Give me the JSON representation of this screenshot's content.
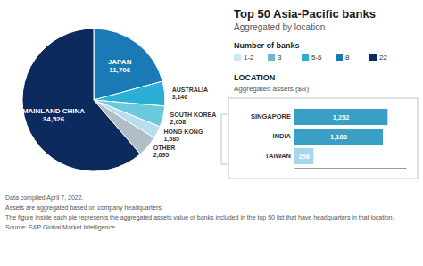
{
  "chart_data": [
    {
      "type": "pie",
      "title": "Top 50 Asia-Pacific banks",
      "subtitle": "Aggregated by location",
      "categories": [
        "JAPAN",
        "AUSTRALIA",
        "SOUTH KOREA",
        "HONG KONG",
        "OTHER",
        "MAINLAND CHINA"
      ],
      "values": [
        11706,
        3146,
        2658,
        1585,
        2695,
        34526
      ],
      "value_labels": [
        "11,706",
        "3,146",
        "2,658",
        "1,585",
        "2,695",
        "34,526"
      ],
      "colors": [
        "#1a7ab5",
        "#2bafd4",
        "#6cc8dc",
        "#b8dded",
        "#b0bec5",
        "#0c2a5e"
      ],
      "data_labels": true,
      "legend_title": "Number of banks",
      "legend_items": [
        "1-2",
        "3",
        "5-6",
        "8",
        "22"
      ],
      "legend_colors": [
        "#c9e8f4",
        "#6ab7d6",
        "#2bafd4",
        "#1a7ab5",
        "#0c2a5e"
      ],
      "footnotes": [
        "Data compiled April 7, 2022.",
        "Assets are aggregated based on company headquarters.",
        "The figure inside each pie represents the aggregated assets value of banks included in the top 50 list that have headquarters in that location.",
        "Source: S&P Global Market Intelligence"
      ]
    },
    {
      "type": "bar",
      "title": "LOCATION",
      "subtitle": "Aggregated assets ($B)",
      "orientation": "horizontal",
      "categories": [
        "SINGAPORE",
        "INDIA",
        "TAIWAN"
      ],
      "values": [
        1252,
        1188,
        256
      ],
      "value_labels": [
        "1,252",
        "1,188",
        "256"
      ],
      "colors": [
        "#3a9fc4",
        "#3a9fc4",
        "#a8d5e8"
      ],
      "data_labels": true,
      "xlim": [
        0,
        1500
      ],
      "tick_labels": false
    }
  ]
}
